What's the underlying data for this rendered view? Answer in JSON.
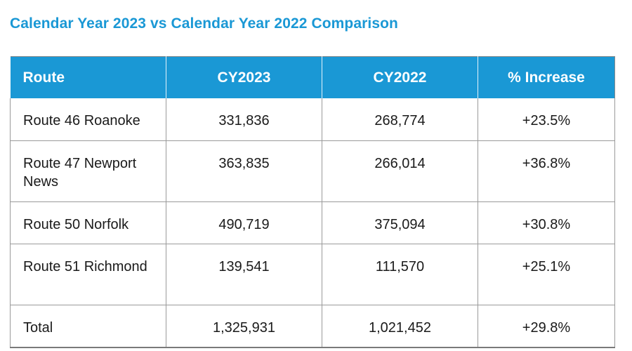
{
  "title": "Calendar Year 2023 vs Calendar Year 2022 Comparison",
  "table": {
    "headers": [
      "Route",
      "CY2023",
      "CY2022",
      "% Increase"
    ],
    "rows": [
      [
        "Route 46 Roanoke",
        "331,836",
        "268,774",
        "+23.5%"
      ],
      [
        "Route 47 Newport News",
        "363,835",
        "266,014",
        "+36.8%"
      ],
      [
        "Route 50 Norfolk",
        "490,719",
        "375,094",
        "+30.8%"
      ],
      [
        "Route 51 Richmond",
        "139,541",
        "111,570",
        "+25.1%"
      ],
      [
        "Total",
        "1,325,931",
        "1,021,452",
        "+29.8%"
      ]
    ]
  },
  "colors": {
    "accent": "#1a98d5",
    "header_text": "#ffffff"
  }
}
